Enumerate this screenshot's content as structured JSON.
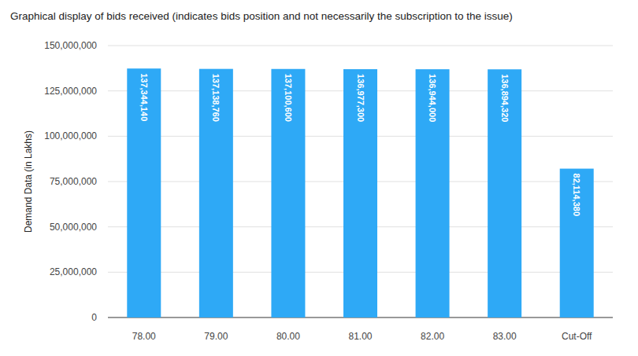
{
  "chart_data": {
    "type": "bar",
    "title": "Graphical display of bids received (indicates bids position and not necessarily the subscription to the issue)",
    "y_label": "Demand Data (in Lakhs)",
    "categories": [
      "78.00",
      "79.00",
      "80.00",
      "81.00",
      "82.00",
      "83.00",
      "Cut-Off"
    ],
    "values": [
      137344140,
      137138760,
      137100600,
      136977300,
      136944000,
      136894320,
      82114380
    ],
    "value_labels": [
      "137,344,140",
      "137,138,760",
      "137,100,600",
      "136,977,300",
      "136,944,000",
      "136,894,320",
      "82,114,380"
    ],
    "color": "#2ea9f6",
    "ylim": [
      0,
      150000000
    ],
    "yticks": [
      0,
      {
        "value": 25000000,
        "label": "25,000,000"
      },
      {
        "value": 50000000,
        "label": "50,000,000"
      },
      {
        "value": 75000000,
        "label": "75,000,000"
      },
      {
        "value": 100000000,
        "label": "100,000,000"
      },
      {
        "value": 125000000,
        "label": "125,000,000"
      },
      {
        "value": 150000000,
        "label": "150,000,000"
      }
    ],
    "grid": true,
    "data_labels": true
  }
}
